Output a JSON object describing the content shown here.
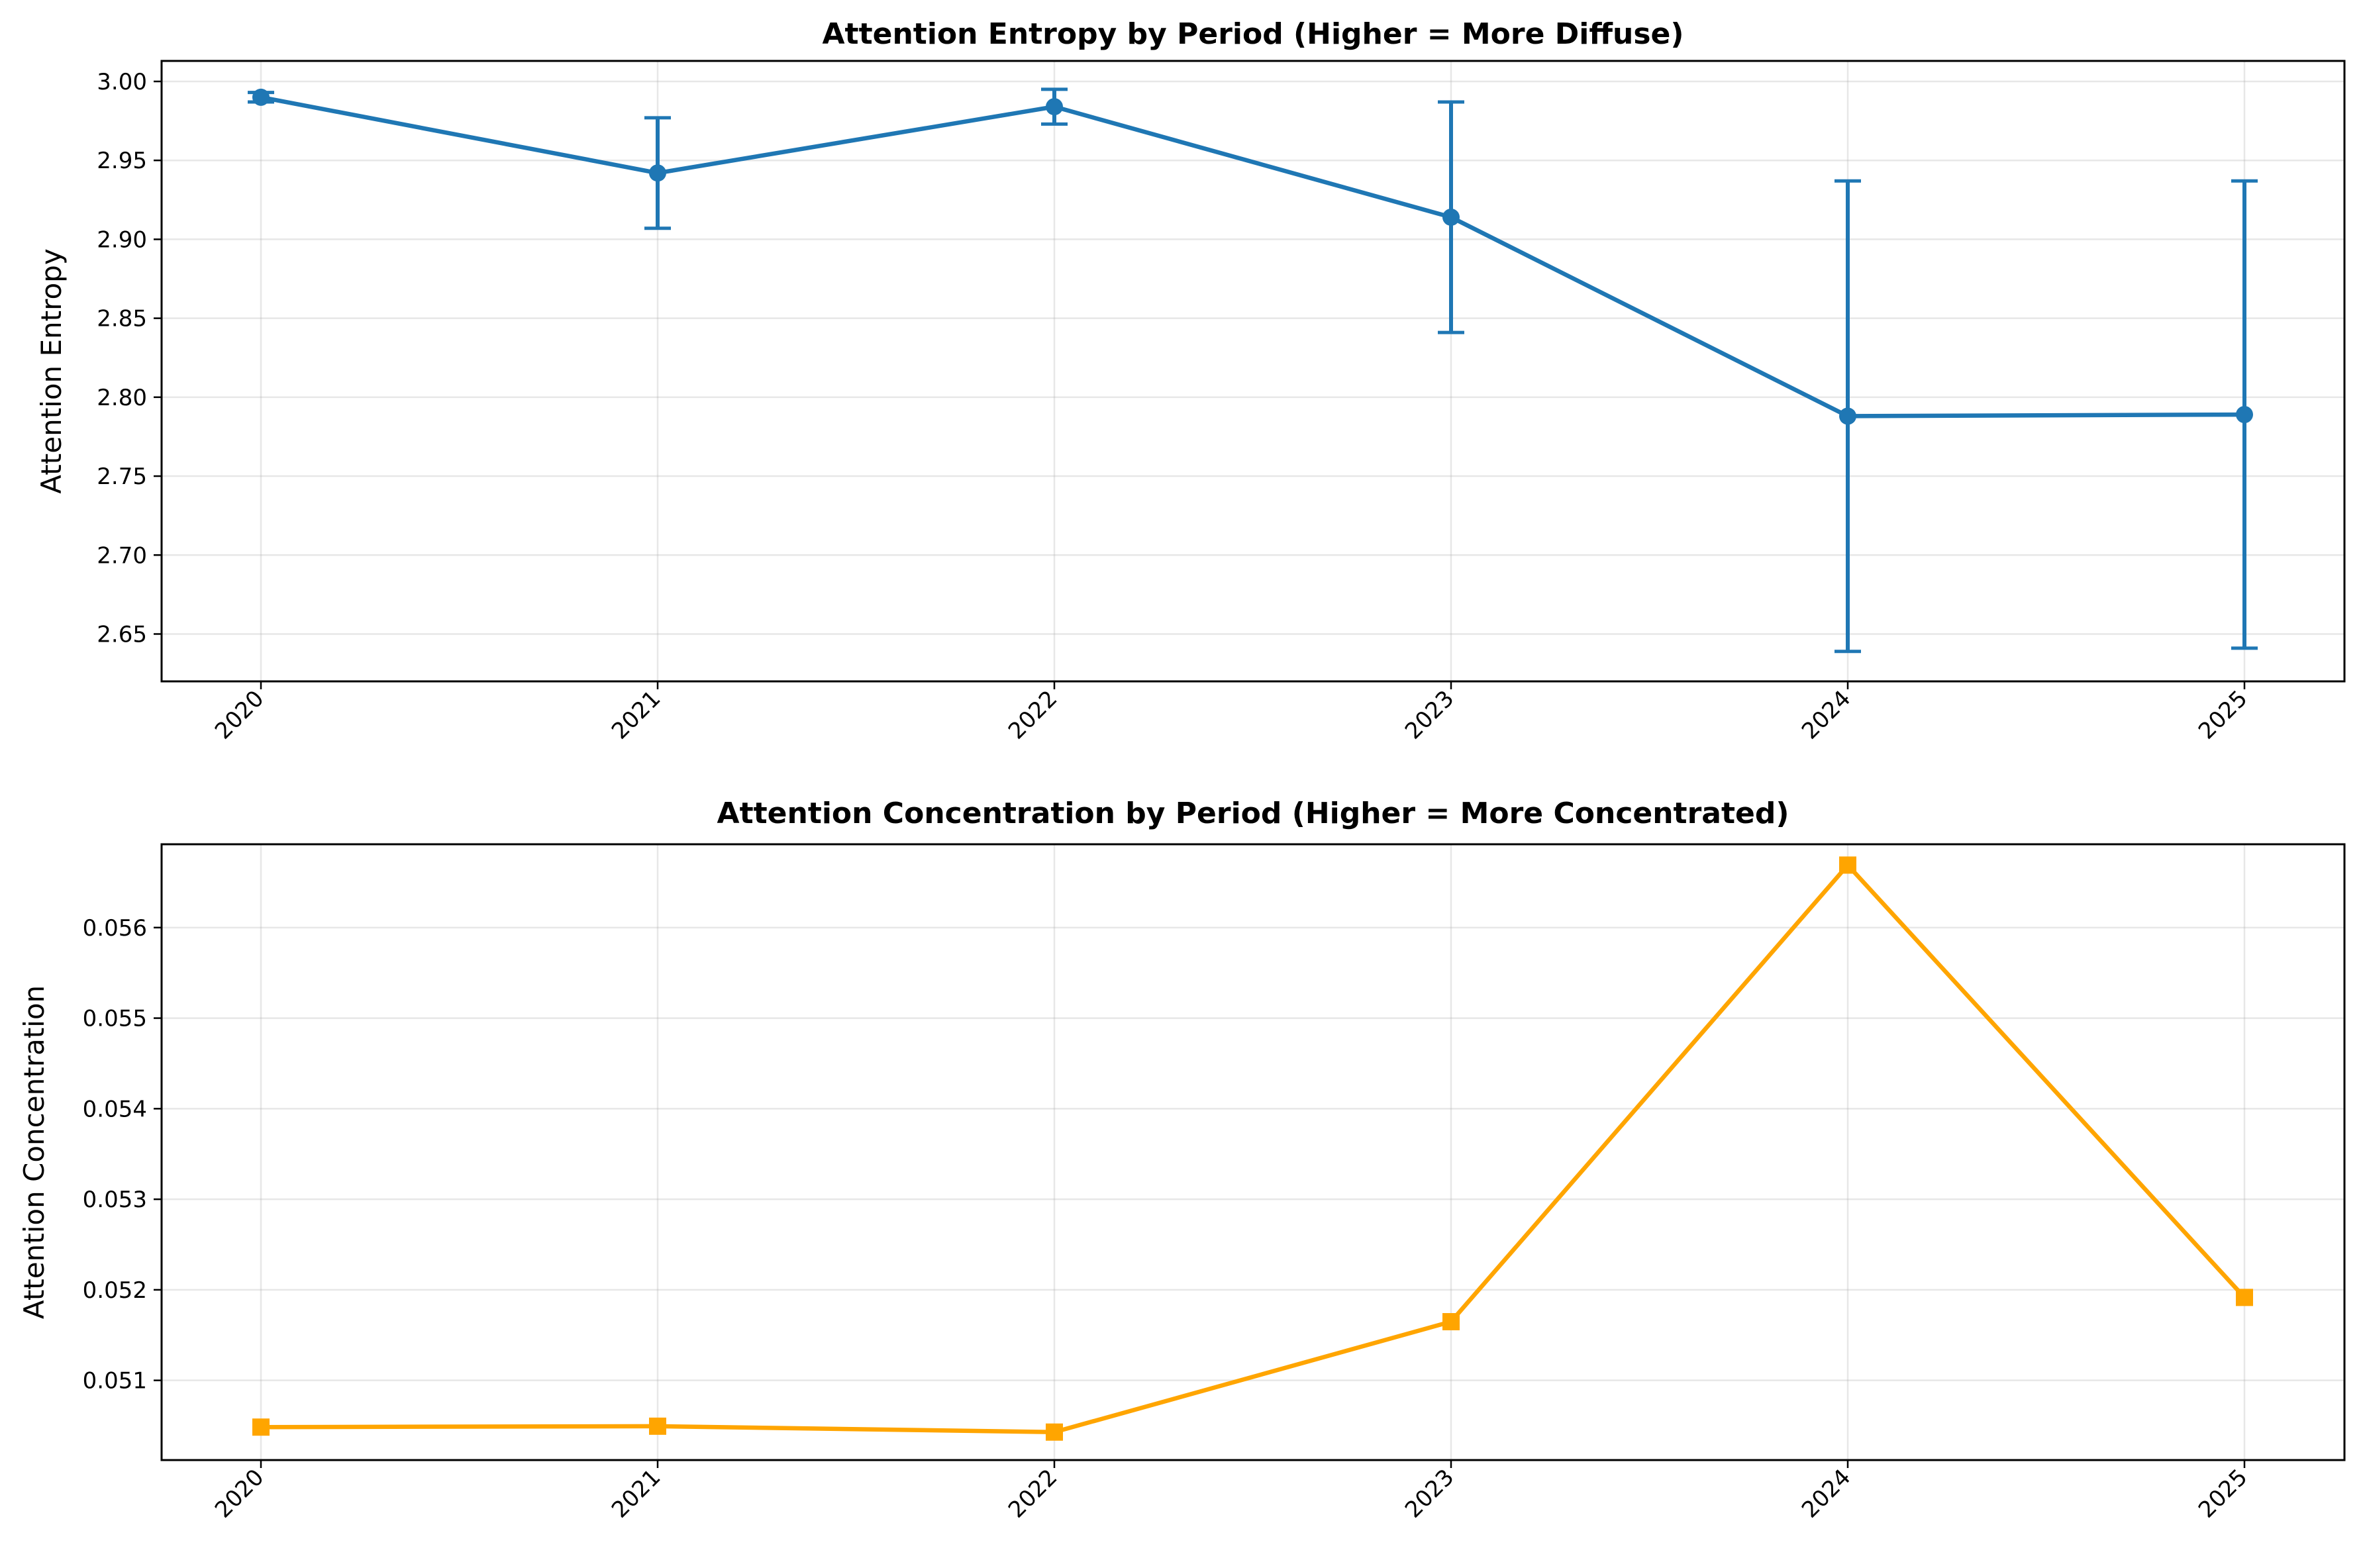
{
  "chart_data": [
    {
      "type": "line",
      "title": "Attention Entropy by Period (Higher = More Diffuse)",
      "xlabel": "",
      "ylabel": "Attention Entropy",
      "categories": [
        "2020",
        "2021",
        "2022",
        "2023",
        "2024",
        "2025"
      ],
      "y_ticks": [
        "2.65",
        "2.70",
        "2.75",
        "2.80",
        "2.85",
        "2.90",
        "2.95",
        "3.00"
      ],
      "ylim": [
        2.62,
        3.013
      ],
      "grid": true,
      "marker": "circle",
      "color": "#1f77b4",
      "series": [
        {
          "values": [
            2.99,
            2.942,
            2.984,
            2.914,
            2.788,
            2.789
          ],
          "error": [
            0.003,
            0.035,
            0.011,
            0.073,
            0.149,
            0.148
          ]
        }
      ]
    },
    {
      "type": "line",
      "title": "Attention Concentration by Period (Higher = More Concentrated)",
      "xlabel": "",
      "ylabel": "Attention Concentration",
      "categories": [
        "2020",
        "2021",
        "2022",
        "2023",
        "2024",
        "2025"
      ],
      "y_ticks": [
        "0.051",
        "0.052",
        "0.053",
        "0.054",
        "0.055",
        "0.056"
      ],
      "ylim": [
        0.05012,
        0.05692
      ],
      "grid": true,
      "marker": "square",
      "color": "#ffa500",
      "series": [
        {
          "values": [
            0.050484,
            0.050494,
            0.050429,
            0.051648,
            0.05669,
            0.051916
          ]
        }
      ]
    }
  ]
}
